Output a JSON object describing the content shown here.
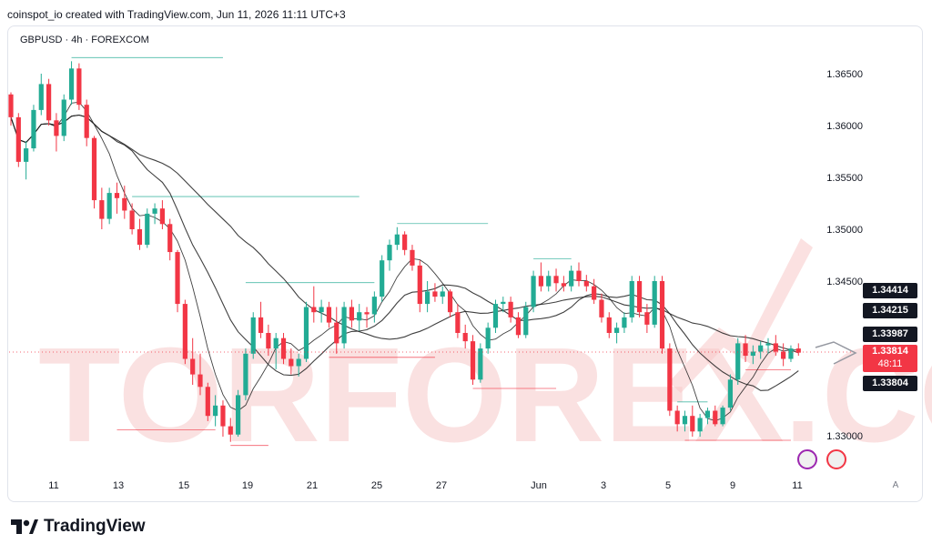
{
  "header": {
    "credit": "coinspot_io created with TradingView.com, Jun 11, 2026 11:11 UTC+3"
  },
  "symbol_line": "GBPUSD · 4h · FOREXCOM",
  "watermark": "TORFOREX.COM",
  "footer": {
    "brand": "TradingView"
  },
  "auto_label": "A",
  "price_axis": [
    "1.36500",
    "1.36000",
    "1.35500",
    "1.35000",
    "1.34500",
    "1.33000"
  ],
  "date_axis": [
    "11",
    "13",
    "15",
    "19",
    "21",
    "25",
    "27",
    "Jun",
    "3",
    "5",
    "9",
    "11"
  ],
  "tags": {
    "ma1": "1.34414",
    "ma2": "1.34215",
    "ma3": "1.33987",
    "last": "1.33814",
    "countdown": "48:11",
    "bid": "1.33804"
  },
  "colors": {
    "up": "#22ab94",
    "down": "#f23645",
    "ma": "#1e1e1e",
    "level_up": "#22ab94",
    "level_down": "#f23645"
  },
  "chart_data": {
    "type": "candlestick",
    "symbol": "GBPUSD",
    "interval": "4h",
    "exchange": "FOREXCOM",
    "ylim": [
      1.327,
      1.369
    ],
    "y_ticks": [
      1.365,
      1.36,
      1.355,
      1.35,
      1.345,
      1.33
    ],
    "x_ticks": [
      "11",
      "13",
      "15",
      "19",
      "21",
      "25",
      "27",
      "Jun",
      "3",
      "5",
      "9",
      "11"
    ],
    "candles": [
      [
        1.363,
        1.3632,
        1.36,
        1.3608
      ],
      [
        1.3608,
        1.3612,
        1.356,
        1.3565
      ],
      [
        1.3565,
        1.3585,
        1.3548,
        1.3578
      ],
      [
        1.3578,
        1.362,
        1.3575,
        1.3615
      ],
      [
        1.3615,
        1.365,
        1.361,
        1.364
      ],
      [
        1.364,
        1.3645,
        1.36,
        1.3605
      ],
      [
        1.3605,
        1.3612,
        1.3575,
        1.359
      ],
      [
        1.359,
        1.363,
        1.3585,
        1.3625
      ],
      [
        1.3625,
        1.3662,
        1.362,
        1.3655
      ],
      [
        1.3655,
        1.366,
        1.3615,
        1.362
      ],
      [
        1.362,
        1.3625,
        1.358,
        1.3588
      ],
      [
        1.3588,
        1.359,
        1.352,
        1.3528
      ],
      [
        1.3528,
        1.354,
        1.35,
        1.351
      ],
      [
        1.351,
        1.354,
        1.3505,
        1.3535
      ],
      [
        1.3535,
        1.3545,
        1.3515,
        1.353
      ],
      [
        1.353,
        1.3542,
        1.351,
        1.3518
      ],
      [
        1.3518,
        1.3525,
        1.3495,
        1.35
      ],
      [
        1.35,
        1.351,
        1.348,
        1.3485
      ],
      [
        1.3485,
        1.352,
        1.3482,
        1.3515
      ],
      [
        1.3515,
        1.3525,
        1.3505,
        1.352
      ],
      [
        1.352,
        1.3528,
        1.35,
        1.3505
      ],
      [
        1.3505,
        1.351,
        1.347,
        1.3478
      ],
      [
        1.3478,
        1.348,
        1.342,
        1.3428
      ],
      [
        1.3428,
        1.3432,
        1.337,
        1.3375
      ],
      [
        1.3375,
        1.3395,
        1.335,
        1.336
      ],
      [
        1.336,
        1.338,
        1.334,
        1.3348
      ],
      [
        1.3348,
        1.3352,
        1.3315,
        1.332
      ],
      [
        1.332,
        1.334,
        1.331,
        1.333
      ],
      [
        1.333,
        1.3335,
        1.33,
        1.331
      ],
      [
        1.331,
        1.3318,
        1.3295,
        1.3302
      ],
      [
        1.3302,
        1.3345,
        1.33,
        1.334
      ],
      [
        1.334,
        1.3385,
        1.3335,
        1.338
      ],
      [
        1.338,
        1.342,
        1.3375,
        1.3415
      ],
      [
        1.3415,
        1.343,
        1.3395,
        1.34
      ],
      [
        1.34,
        1.3408,
        1.3378,
        1.3385
      ],
      [
        1.3385,
        1.34,
        1.3365,
        1.3395
      ],
      [
        1.3395,
        1.34,
        1.337,
        1.3375
      ],
      [
        1.3375,
        1.3385,
        1.336,
        1.3368
      ],
      [
        1.3368,
        1.338,
        1.3358,
        1.3375
      ],
      [
        1.3375,
        1.343,
        1.3372,
        1.3425
      ],
      [
        1.3425,
        1.3445,
        1.341,
        1.342
      ],
      [
        1.342,
        1.3432,
        1.341,
        1.3425
      ],
      [
        1.3425,
        1.343,
        1.3405,
        1.341
      ],
      [
        1.341,
        1.3425,
        1.338,
        1.339
      ],
      [
        1.339,
        1.343,
        1.3385,
        1.3425
      ],
      [
        1.3425,
        1.3432,
        1.3405,
        1.3412
      ],
      [
        1.3412,
        1.3428,
        1.3402,
        1.342
      ],
      [
        1.342,
        1.3425,
        1.3405,
        1.3418
      ],
      [
        1.3418,
        1.344,
        1.341,
        1.3435
      ],
      [
        1.3435,
        1.3475,
        1.343,
        1.347
      ],
      [
        1.347,
        1.349,
        1.346,
        1.3485
      ],
      [
        1.3485,
        1.3502,
        1.348,
        1.3495
      ],
      [
        1.3495,
        1.3498,
        1.3475,
        1.348
      ],
      [
        1.348,
        1.3485,
        1.346,
        1.3465
      ],
      [
        1.3465,
        1.347,
        1.342,
        1.3428
      ],
      [
        1.3428,
        1.345,
        1.342,
        1.344
      ],
      [
        1.344,
        1.3448,
        1.343,
        1.3435
      ],
      [
        1.3435,
        1.3445,
        1.3428,
        1.344
      ],
      [
        1.344,
        1.3442,
        1.3415,
        1.342
      ],
      [
        1.342,
        1.3428,
        1.3395,
        1.34
      ],
      [
        1.34,
        1.3408,
        1.3385,
        1.3392
      ],
      [
        1.3392,
        1.3398,
        1.335,
        1.3355
      ],
      [
        1.3355,
        1.339,
        1.3352,
        1.3385
      ],
      [
        1.3385,
        1.341,
        1.338,
        1.3405
      ],
      [
        1.3405,
        1.3432,
        1.34,
        1.3428
      ],
      [
        1.3428,
        1.3435,
        1.342,
        1.343
      ],
      [
        1.343,
        1.3435,
        1.341,
        1.3415
      ],
      [
        1.3415,
        1.342,
        1.3395,
        1.3398
      ],
      [
        1.3398,
        1.343,
        1.3395,
        1.3425
      ],
      [
        1.3425,
        1.346,
        1.342,
        1.3455
      ],
      [
        1.3455,
        1.3468,
        1.344,
        1.3445
      ],
      [
        1.3445,
        1.346,
        1.344,
        1.3455
      ],
      [
        1.3455,
        1.3462,
        1.344,
        1.3448
      ],
      [
        1.3448,
        1.3455,
        1.344,
        1.3445
      ],
      [
        1.3445,
        1.3465,
        1.344,
        1.346
      ],
      [
        1.346,
        1.3468,
        1.3445,
        1.345
      ],
      [
        1.345,
        1.3456,
        1.344,
        1.3445
      ],
      [
        1.3445,
        1.3452,
        1.3428,
        1.3432
      ],
      [
        1.3432,
        1.3438,
        1.341,
        1.3415
      ],
      [
        1.3415,
        1.342,
        1.3395,
        1.34
      ],
      [
        1.34,
        1.341,
        1.339,
        1.3405
      ],
      [
        1.3405,
        1.342,
        1.34,
        1.3415
      ],
      [
        1.3415,
        1.3455,
        1.341,
        1.345
      ],
      [
        1.345,
        1.3455,
        1.3415,
        1.342
      ],
      [
        1.342,
        1.3428,
        1.34,
        1.3408
      ],
      [
        1.3408,
        1.3455,
        1.3405,
        1.345
      ],
      [
        1.345,
        1.3455,
        1.338,
        1.3385
      ],
      [
        1.3385,
        1.339,
        1.332,
        1.3325
      ],
      [
        1.3325,
        1.333,
        1.3305,
        1.3312
      ],
      [
        1.3312,
        1.3325,
        1.3305,
        1.332
      ],
      [
        1.332,
        1.333,
        1.33,
        1.3305
      ],
      [
        1.3305,
        1.3322,
        1.33,
        1.3318
      ],
      [
        1.3318,
        1.3328,
        1.3312,
        1.3325
      ],
      [
        1.3325,
        1.333,
        1.331,
        1.3312
      ],
      [
        1.3312,
        1.333,
        1.331,
        1.3328
      ],
      [
        1.3328,
        1.336,
        1.3325,
        1.3355
      ],
      [
        1.3355,
        1.3395,
        1.335,
        1.339
      ],
      [
        1.339,
        1.3398,
        1.3372,
        1.3378
      ],
      [
        1.3378,
        1.3388,
        1.337,
        1.3382
      ],
      [
        1.3382,
        1.3392,
        1.3375,
        1.3388
      ],
      [
        1.3388,
        1.3395,
        1.338,
        1.339
      ],
      [
        1.339,
        1.3398,
        1.3378,
        1.3382
      ],
      [
        1.3382,
        1.339,
        1.3368,
        1.3375
      ],
      [
        1.3375,
        1.3388,
        1.3372,
        1.3385
      ],
      [
        1.3385,
        1.339,
        1.3378,
        1.3381
      ]
    ],
    "moving_averages": [
      {
        "last": 1.34414
      },
      {
        "last": 1.34215
      },
      {
        "last": 1.33987
      }
    ],
    "current_price": 1.33814,
    "bid_price": 1.33804
  }
}
